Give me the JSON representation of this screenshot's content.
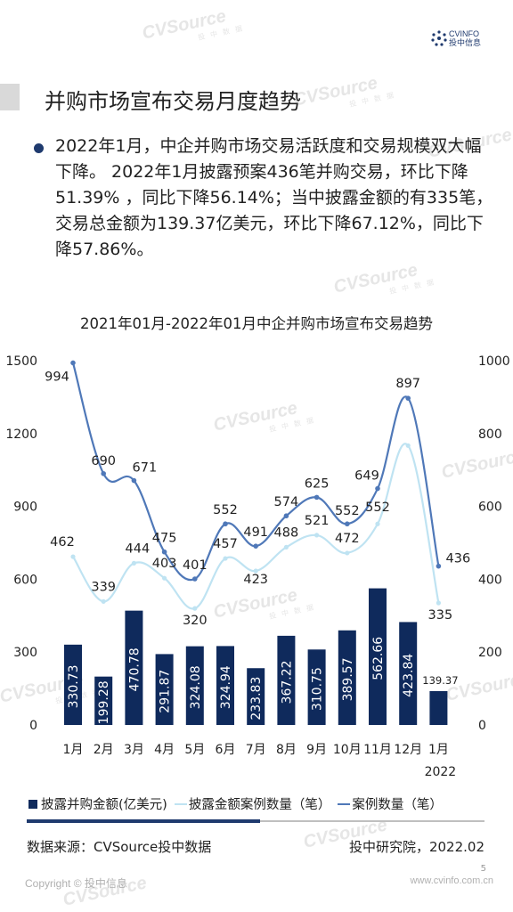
{
  "logo": {
    "line1": "CVINFO",
    "line2": "投中信息"
  },
  "watermark": {
    "text": "CVSource",
    "sub": "投 中 数 据"
  },
  "page": {
    "title": "并购市场宣布交易月度趋势",
    "summary": "2022年1月，中企并购市场交易活跃度和交易规模双大幅下降。 2022年1月披露预案436笔并购交易，环比下降51.39% ，同比下降56.14%；当中披露金额的有335笔，交易总金额为139.37亿美元，环比下降67.12%，同比下降57.86%。"
  },
  "chart_data": {
    "type": "bar",
    "title": "2021年01月-2022年01月中企并购市场宣布交易趋势",
    "categories": [
      "1月",
      "2月",
      "3月",
      "4月",
      "5月",
      "6月",
      "7月",
      "8月",
      "9月",
      "10月",
      "11月",
      "12月",
      "1月"
    ],
    "year_label": "2022",
    "y_left": {
      "ticks": [
        0,
        300,
        600,
        900,
        1200,
        1500
      ],
      "range": [
        0,
        1500
      ]
    },
    "y_right": {
      "ticks": [
        0,
        200,
        400,
        600,
        800,
        1000
      ],
      "range": [
        0,
        1000
      ]
    },
    "series": [
      {
        "name": "披露并购金额(亿美元)",
        "type": "bar",
        "axis": "left",
        "color": "#0f2a5c",
        "values": [
          330.73,
          199.28,
          470.78,
          291.87,
          324.08,
          324.94,
          233.83,
          367.22,
          310.75,
          389.57,
          562.66,
          423.84,
          139.37
        ]
      },
      {
        "name": "披露金额案例数量（笔）",
        "type": "line",
        "axis": "right",
        "color": "#bfe3f2",
        "values": [
          462,
          339,
          444,
          403,
          320,
          457,
          423,
          488,
          521,
          472,
          552,
          767,
          335
        ],
        "labels": [
          "462",
          "339",
          "444",
          "403",
          "320",
          "457",
          "423",
          "488",
          "521",
          "472",
          "552",
          "",
          "335"
        ]
      },
      {
        "name": "案例数量（笔）",
        "type": "line",
        "axis": "right",
        "color": "#4f78b8",
        "values": [
          994,
          690,
          671,
          475,
          401,
          552,
          491,
          574,
          625,
          552,
          649,
          897,
          436
        ]
      }
    ]
  },
  "footer": {
    "source": "数据来源：CVSource投中数据",
    "institute": "投中研究院，2022.02",
    "copyright": "Copyright © 投中信息",
    "site": "www.cvinfo.com.cn",
    "page_number": "5"
  }
}
